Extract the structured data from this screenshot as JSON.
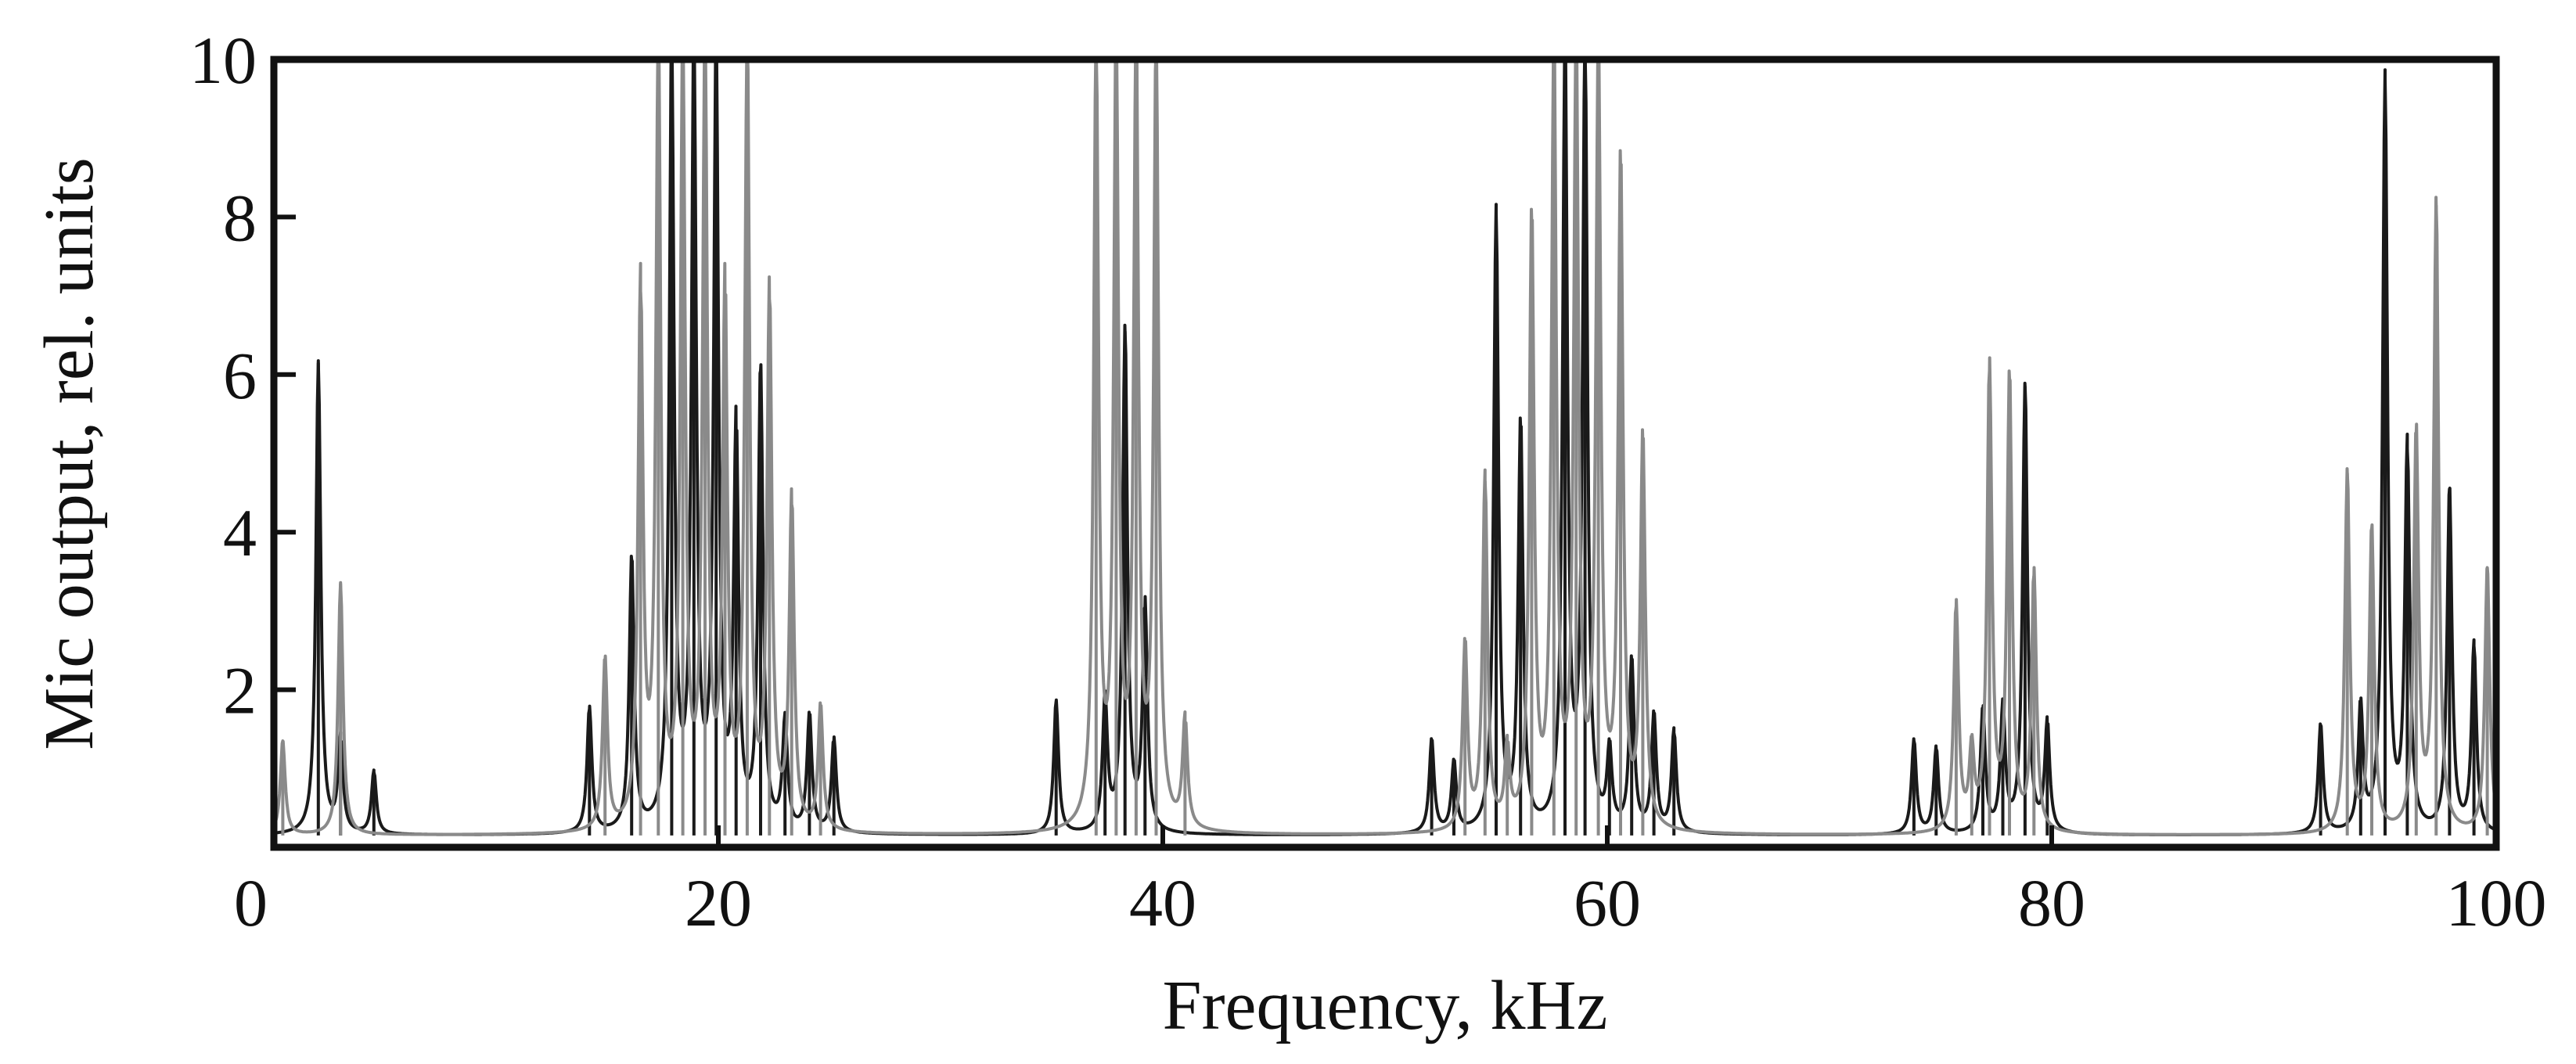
{
  "chart_data": {
    "type": "line",
    "title": "",
    "xlabel": "Frequency, kHz",
    "ylabel": "Mic output, rel. units",
    "xlim": [
      0,
      100
    ],
    "ylim": [
      0,
      10
    ],
    "x_ticks": [
      0,
      20,
      40,
      60,
      80,
      100
    ],
    "x_tick_labels": [
      "0",
      "20",
      "40",
      "60",
      "80",
      "100"
    ],
    "y_ticks": [
      2,
      4,
      6,
      8,
      10
    ],
    "y_tick_labels": [
      "2",
      "4",
      "6",
      "8",
      "10"
    ],
    "grid": false,
    "legend": "none",
    "series": [
      {
        "color": "#1a1a1a",
        "x": [
          2.0,
          3.0,
          4.5,
          14.2,
          16.1,
          17.9,
          18.9,
          19.9,
          20.8,
          21.9,
          23.0,
          24.1,
          25.2,
          35.2,
          37.4,
          38.3,
          39.2,
          52.1,
          53.1,
          55.0,
          56.1,
          58.1,
          59.0,
          60.1,
          61.1,
          62.1,
          63.0,
          73.8,
          74.8,
          76.9,
          77.8,
          78.8,
          79.8,
          92.1,
          93.9,
          95.0,
          96.0,
          97.9,
          99.0
        ],
        "y": [
          6.0,
          1.2,
          0.8,
          1.6,
          3.5,
          10.0,
          10.0,
          10.0,
          5.1,
          5.9,
          1.4,
          1.5,
          1.2,
          1.7,
          1.7,
          6.4,
          2.9,
          1.2,
          0.9,
          7.9,
          5.2,
          10.0,
          10.0,
          1.0,
          2.2,
          1.5,
          1.3,
          1.2,
          1.1,
          1.6,
          1.6,
          5.7,
          1.4,
          1.4,
          1.6,
          9.6,
          4.9,
          4.4,
          2.4
        ]
      },
      {
        "color": "#8a8a8a",
        "x": [
          0.4,
          3.0,
          14.9,
          16.5,
          17.3,
          18.4,
          19.4,
          20.3,
          21.3,
          22.3,
          23.3,
          24.6,
          37.0,
          37.9,
          38.8,
          39.7,
          41.0,
          53.6,
          54.5,
          55.5,
          56.6,
          57.6,
          58.6,
          59.6,
          60.6,
          61.6,
          75.7,
          76.4,
          77.2,
          78.1,
          79.2,
          93.3,
          94.4,
          96.4,
          97.3,
          99.6
        ],
        "y": [
          1.2,
          3.2,
          2.2,
          6.9,
          10.0,
          10.0,
          10.0,
          6.8,
          10.0,
          6.8,
          4.2,
          1.6,
          10.0,
          10.0,
          10.0,
          10.0,
          1.4,
          2.4,
          4.5,
          1.0,
          7.8,
          10.0,
          10.0,
          10.0,
          8.5,
          5.0,
          2.9,
          1.0,
          5.9,
          5.8,
          3.3,
          4.6,
          3.9,
          5.1,
          8.0,
          3.4
        ]
      }
    ],
    "spike_linewidth_kHz": 0.13,
    "background_level": 0.15
  }
}
